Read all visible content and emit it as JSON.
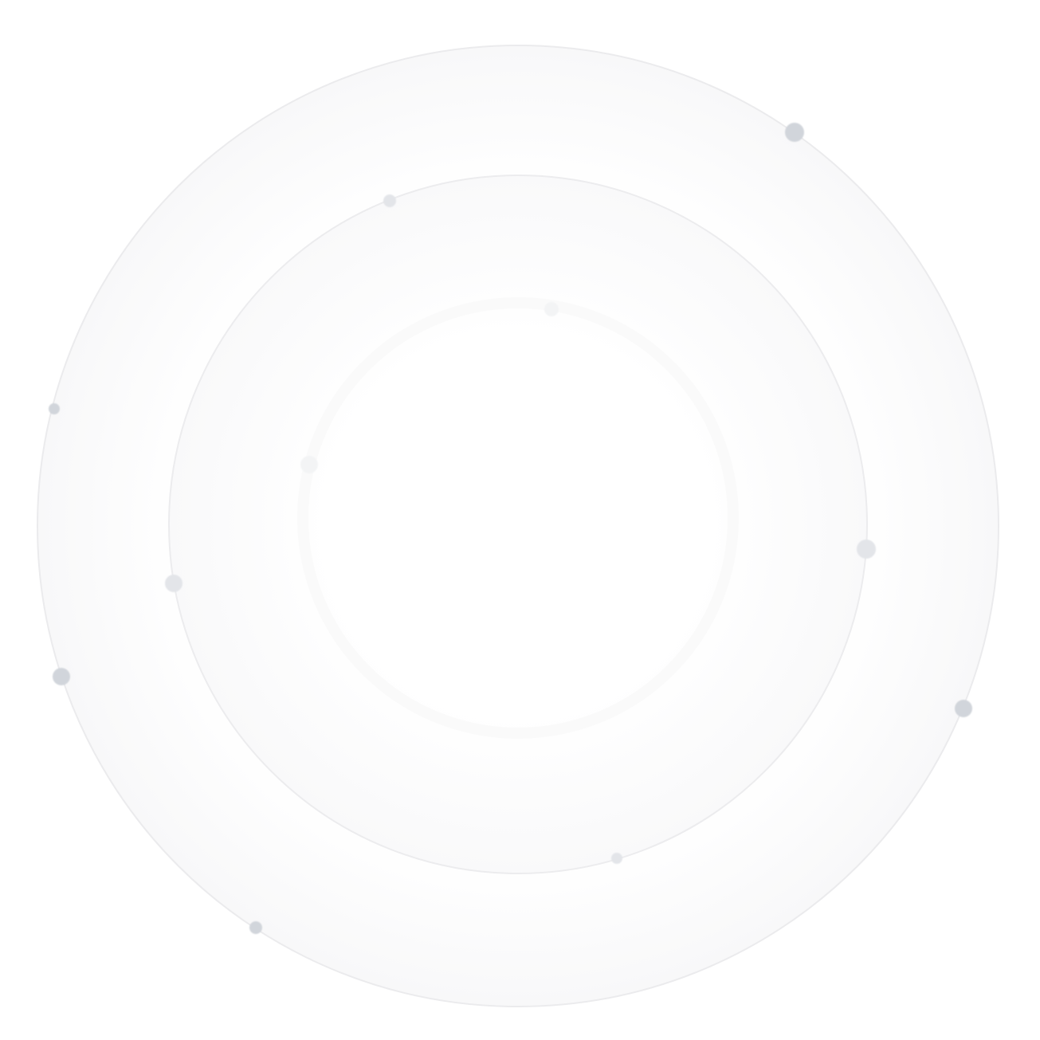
{
  "colors": {
    "background": "#ffffff",
    "ring_stroke": "#ececee",
    "ring_fill_outer": "#f7f7f8",
    "ring_fill_inner": "#ffffff",
    "dot": "#d1d5db",
    "dot_light": "#e3e5e9",
    "dot_faint": "#f3f4f5"
  }
}
